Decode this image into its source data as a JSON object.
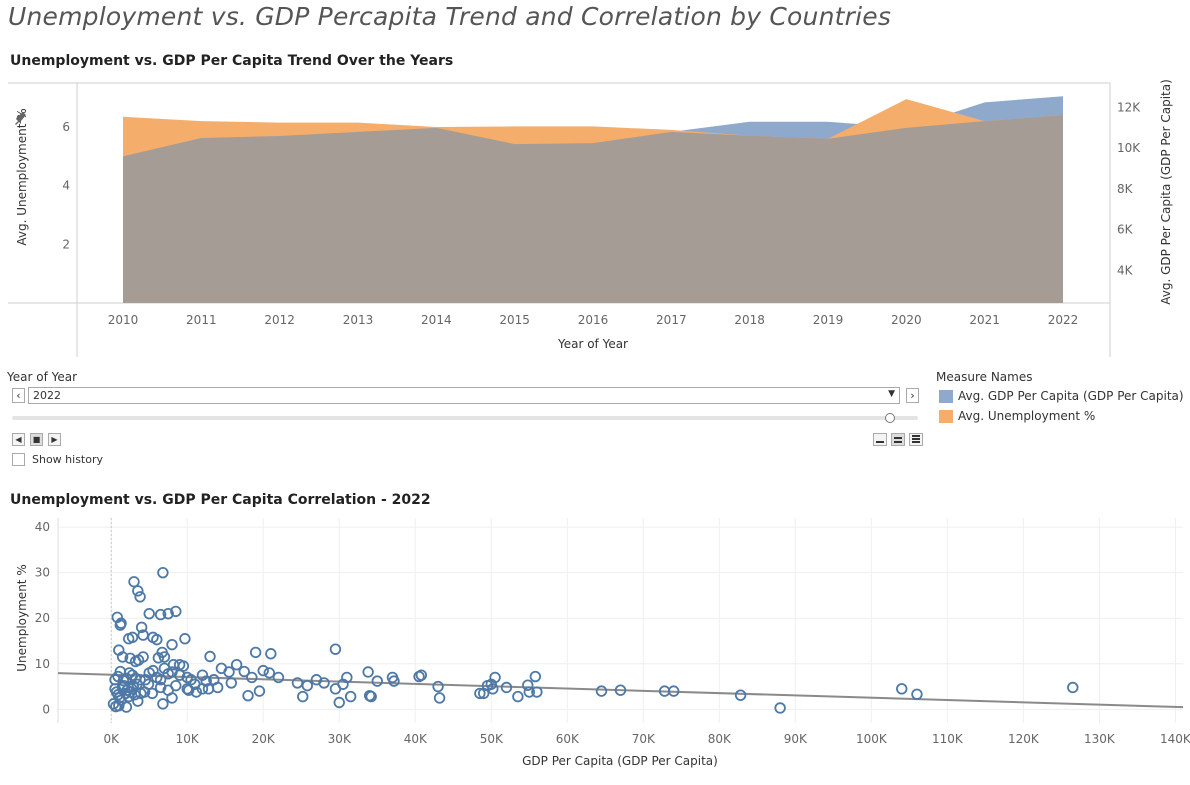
{
  "page_title": "Unemployment vs. GDP Percapita Trend and Correlation by Countries",
  "colors": {
    "gdp": "#8fa9cc",
    "unemployment": "#f4ad6a",
    "overlap": "#a59c96",
    "scatter": "#4e79a7",
    "trend": "#8a8a8a"
  },
  "controls": {
    "filter_title": "Year of Year",
    "selected_year": "2022",
    "prev_icon": "chevron-left-icon",
    "next_icon": "chevron-right-icon",
    "show_history_label": "Show history",
    "legend_title": "Measure Names",
    "legend_items": [
      {
        "label": "Avg. GDP Per Capita (GDP Per Capita)",
        "color": "#8fa9cc"
      },
      {
        "label": "Avg. Unemployment %",
        "color": "#f4ad6a"
      }
    ]
  },
  "chart_data": [
    {
      "type": "area",
      "title": "Unemployment vs. GDP Per Capita  Trend Over the Years",
      "xlabel": "Year of Year",
      "ylabel": "Avg. Unemployment %",
      "y2label": "Avg. GDP Per Capita (GDP Per Capita)",
      "categories": [
        "2010",
        "2011",
        "2012",
        "2013",
        "2014",
        "2015",
        "2016",
        "2017",
        "2018",
        "2019",
        "2020",
        "2021",
        "2022"
      ],
      "ylim": [
        0,
        7.5
      ],
      "y_ticks": [
        "2",
        "4",
        "6"
      ],
      "y2lim": [
        2400,
        13200
      ],
      "y2_ticks": [
        "4K",
        "6K",
        "8K",
        "10K",
        "12K"
      ],
      "series": [
        {
          "name": "Avg. GDP Per Capita (GDP Per Capita)",
          "axis": "right",
          "values": [
            9600,
            10500,
            10600,
            10800,
            11000,
            10200,
            10250,
            10800,
            11300,
            11300,
            11000,
            12250,
            12550
          ]
        },
        {
          "name": "Avg. Unemployment %",
          "axis": "left",
          "values": [
            6.35,
            6.2,
            6.15,
            6.15,
            6.0,
            6.02,
            6.02,
            5.9,
            5.7,
            5.6,
            6.95,
            6.2,
            6.4
          ]
        }
      ],
      "legend": "right"
    },
    {
      "type": "scatter",
      "title": "Unemployment vs. GDP Per Capita Correlation - 2022",
      "xlabel": "GDP Per Capita (GDP Per Capita)",
      "ylabel": "Unemployment %",
      "xlim": [
        -7000,
        141000
      ],
      "ylim": [
        -3,
        42
      ],
      "x_ticks": [
        0,
        10000,
        20000,
        30000,
        40000,
        50000,
        60000,
        70000,
        80000,
        90000,
        100000,
        110000,
        120000,
        130000,
        140000
      ],
      "x_tick_labels": [
        "0K",
        "10K",
        "20K",
        "30K",
        "40K",
        "50K",
        "60K",
        "70K",
        "80K",
        "90K",
        "100K",
        "110K",
        "120K",
        "130K",
        "140K"
      ],
      "y_ticks": [
        0,
        10,
        20,
        30,
        40
      ],
      "trend_line": {
        "intercept": 7.6,
        "slope_per_1k": -0.0505
      },
      "points": [
        [
          800,
          20.2
        ],
        [
          1200,
          18.5
        ],
        [
          1300,
          18.9
        ],
        [
          2300,
          15.5
        ],
        [
          2800,
          15.8
        ],
        [
          3000,
          28
        ],
        [
          3500,
          26
        ],
        [
          3800,
          24.7
        ],
        [
          4000,
          18
        ],
        [
          4200,
          16.3
        ],
        [
          5000,
          21
        ],
        [
          5500,
          15.8
        ],
        [
          6000,
          15.3
        ],
        [
          6500,
          20.8
        ],
        [
          6800,
          30
        ],
        [
          7500,
          21
        ],
        [
          8500,
          21.5
        ],
        [
          9700,
          15.5
        ],
        [
          1000,
          13
        ],
        [
          1500,
          11.5
        ],
        [
          2500,
          11.2
        ],
        [
          3200,
          10.5
        ],
        [
          3600,
          10.8
        ],
        [
          4200,
          11.5
        ],
        [
          6200,
          11.3
        ],
        [
          6700,
          12.5
        ],
        [
          7000,
          11.5
        ],
        [
          8200,
          9.8
        ],
        [
          9000,
          9.8
        ],
        [
          9500,
          9.5
        ],
        [
          8000,
          14.2
        ],
        [
          13000,
          11.6
        ],
        [
          19000,
          12.5
        ],
        [
          21000,
          12.2
        ],
        [
          29500,
          13.2
        ],
        [
          500,
          6.5
        ],
        [
          900,
          7.2
        ],
        [
          1200,
          8.3
        ],
        [
          1600,
          6.3
        ],
        [
          2000,
          6.8
        ],
        [
          2400,
          8
        ],
        [
          2800,
          7.5
        ],
        [
          3200,
          6.8
        ],
        [
          3800,
          6.5
        ],
        [
          4500,
          6.5
        ],
        [
          5000,
          8
        ],
        [
          5500,
          8.5
        ],
        [
          6000,
          7
        ],
        [
          6500,
          6.5
        ],
        [
          7000,
          9
        ],
        [
          7500,
          7.8
        ],
        [
          8000,
          8.2
        ],
        [
          9000,
          7.5
        ],
        [
          10000,
          7
        ],
        [
          10500,
          6.5
        ],
        [
          11000,
          5.5
        ],
        [
          12000,
          7.5
        ],
        [
          12500,
          6.2
        ],
        [
          13500,
          6.5
        ],
        [
          14500,
          9
        ],
        [
          15500,
          8.2
        ],
        [
          16500,
          9.8
        ],
        [
          17500,
          8.3
        ],
        [
          18500,
          7
        ],
        [
          20000,
          8.5
        ],
        [
          20800,
          8
        ],
        [
          22000,
          7
        ],
        [
          500,
          4.5
        ],
        [
          700,
          3.8
        ],
        [
          900,
          3.2
        ],
        [
          1100,
          2.5
        ],
        [
          1300,
          2
        ],
        [
          1500,
          4.8
        ],
        [
          1700,
          5.2
        ],
        [
          1900,
          3.5
        ],
        [
          2100,
          4.2
        ],
        [
          2300,
          2.8
        ],
        [
          2500,
          3.8
        ],
        [
          2700,
          4.5
        ],
        [
          2900,
          5
        ],
        [
          3100,
          3.2
        ],
        [
          3400,
          5.5
        ],
        [
          3900,
          3.5
        ],
        [
          4400,
          3.8
        ],
        [
          4900,
          5.5
        ],
        [
          5400,
          3.5
        ],
        [
          6500,
          4.8
        ],
        [
          7500,
          4.2
        ],
        [
          8500,
          5.2
        ],
        [
          10000,
          4.5
        ],
        [
          10200,
          4.2
        ],
        [
          11200,
          3.8
        ],
        [
          12000,
          4.5
        ],
        [
          12800,
          4.5
        ],
        [
          14000,
          4.8
        ],
        [
          15800,
          5.8
        ],
        [
          18000,
          3
        ],
        [
          19500,
          4
        ],
        [
          24500,
          5.8
        ],
        [
          25200,
          2.8
        ],
        [
          25800,
          5.2
        ],
        [
          27000,
          6.5
        ],
        [
          28000,
          5.8
        ],
        [
          29500,
          4.5
        ],
        [
          30500,
          5.5
        ],
        [
          31000,
          7
        ],
        [
          31500,
          2.8
        ],
        [
          30000,
          1.5
        ],
        [
          33800,
          8.2
        ],
        [
          34000,
          3
        ],
        [
          34200,
          2.8
        ],
        [
          35000,
          6.2
        ],
        [
          37000,
          7
        ],
        [
          37200,
          6.2
        ],
        [
          40500,
          7.2
        ],
        [
          40800,
          7.5
        ],
        [
          43000,
          5
        ],
        [
          43200,
          2.5
        ],
        [
          48500,
          3.5
        ],
        [
          49000,
          3.5
        ],
        [
          49500,
          5.2
        ],
        [
          50000,
          5.5
        ],
        [
          50200,
          4.5
        ],
        [
          50500,
          7
        ],
        [
          52000,
          4.8
        ],
        [
          53500,
          2.8
        ],
        [
          54800,
          5.3
        ],
        [
          55000,
          3.8
        ],
        [
          55800,
          7.2
        ],
        [
          56000,
          3.8
        ],
        [
          64500,
          4
        ],
        [
          67000,
          4.2
        ],
        [
          72800,
          4
        ],
        [
          74000,
          4
        ],
        [
          82800,
          3.1
        ],
        [
          88000,
          0.3
        ],
        [
          104000,
          4.5
        ],
        [
          106000,
          3.3
        ],
        [
          126500,
          4.8
        ],
        [
          300,
          1.2
        ],
        [
          600,
          0.6
        ],
        [
          1000,
          0.8
        ],
        [
          2000,
          0.5
        ],
        [
          3500,
          1.8
        ],
        [
          6800,
          1.2
        ],
        [
          8000,
          2.5
        ]
      ]
    }
  ]
}
